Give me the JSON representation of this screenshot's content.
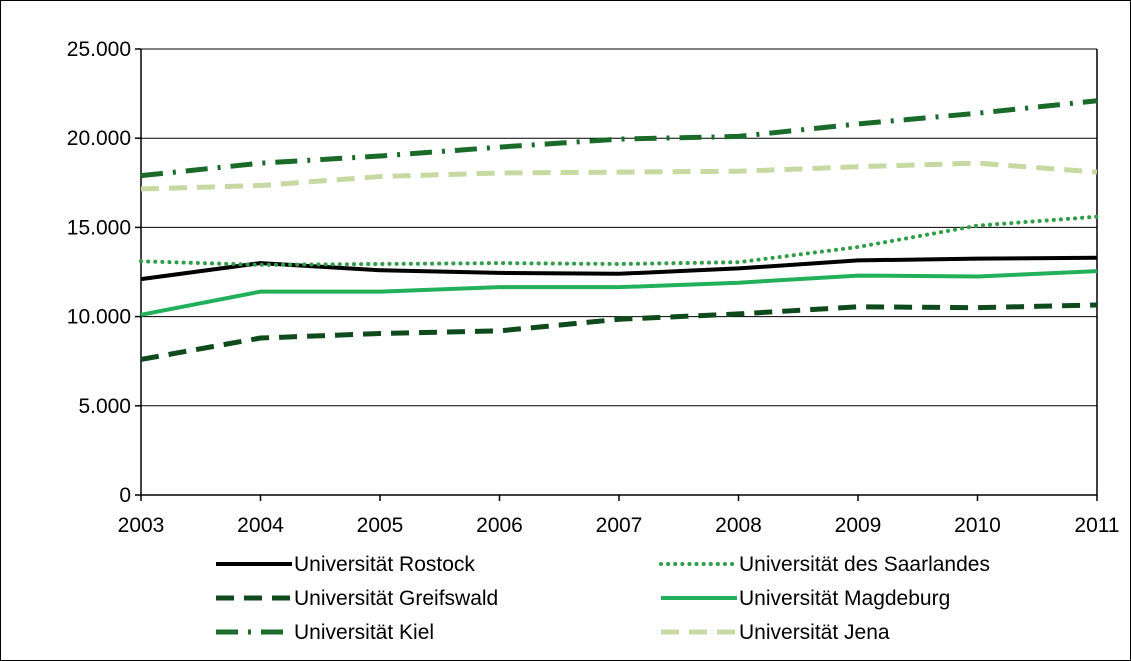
{
  "chart_data": {
    "type": "line",
    "title": "",
    "xlabel": "",
    "ylabel": "",
    "x": [
      2003,
      2004,
      2005,
      2006,
      2007,
      2008,
      2009,
      2010,
      2011
    ],
    "x_tick_labels": [
      "2003",
      "2004",
      "2005",
      "2006",
      "2007",
      "2008",
      "2009",
      "2010",
      "2011"
    ],
    "ylim": [
      0,
      25000
    ],
    "y_ticks": [
      0,
      5000,
      10000,
      15000,
      20000,
      25000
    ],
    "y_tick_labels": [
      "0",
      "5.000",
      "10.000",
      "15.000",
      "20.000",
      "25.000"
    ],
    "grid": "horizontal",
    "legend_position": "bottom",
    "series": [
      {
        "name": "Universität Rostock",
        "color": "#000000",
        "style": "solid",
        "values": [
          12100,
          13000,
          12600,
          12450,
          12400,
          12700,
          13150,
          13250,
          13300
        ]
      },
      {
        "name": "Universität  des Saarlandes",
        "color": "#2e9e48",
        "style": "dotted",
        "values": [
          13100,
          12900,
          12950,
          13000,
          12950,
          13050,
          13900,
          15100,
          15600
        ]
      },
      {
        "name": "Universität Greifswald",
        "color": "#0f4a1c",
        "style": "dashed",
        "values": [
          7600,
          8800,
          9050,
          9200,
          9850,
          10150,
          10550,
          10500,
          10650
        ]
      },
      {
        "name": "Universität Magdeburg",
        "color": "#22b05a",
        "style": "solid",
        "values": [
          10100,
          11400,
          11400,
          11650,
          11650,
          11900,
          12300,
          12250,
          12550
        ]
      },
      {
        "name": "Universität Kiel",
        "color": "#1a6b2a",
        "style": "dashdot",
        "values": [
          17900,
          18600,
          19000,
          19500,
          19950,
          20100,
          20800,
          21400,
          22100
        ]
      },
      {
        "name": "Universität Jena",
        "color": "#c5d9a0",
        "style": "dashed",
        "values": [
          17150,
          17350,
          17850,
          18050,
          18100,
          18150,
          18400,
          18600,
          18100
        ]
      }
    ]
  }
}
